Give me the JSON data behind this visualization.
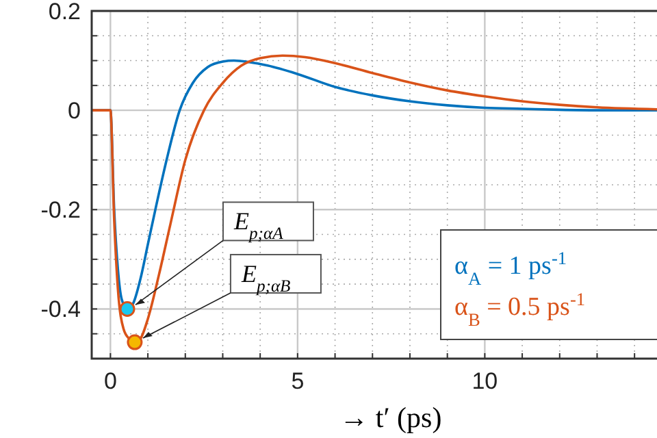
{
  "chart_data": {
    "type": "line",
    "xlabel": "→ t′ (ps)",
    "xlim": [
      -0.5,
      14.6
    ],
    "ylim": [
      -0.5,
      0.2
    ],
    "xticks": [
      0,
      {
        "value": 1,
        "label": null
      },
      {
        "value": 2,
        "label": null
      },
      {
        "value": 3,
        "label": null
      },
      {
        "value": 4,
        "label": null
      },
      5,
      {
        "value": 6,
        "label": null
      },
      {
        "value": 7,
        "label": null
      },
      {
        "value": 8,
        "label": null
      },
      {
        "value": 9,
        "label": null
      },
      10,
      {
        "value": 11,
        "label": null
      },
      {
        "value": 12,
        "label": null
      },
      {
        "value": 13,
        "label": null
      },
      {
        "value": 14,
        "label": null
      }
    ],
    "yticks": [
      {
        "value": -0.45,
        "label": null
      },
      -0.4,
      {
        "value": -0.35,
        "label": null
      },
      {
        "value": -0.3,
        "label": null
      },
      {
        "value": -0.25,
        "label": null
      },
      -0.2,
      {
        "value": -0.15,
        "label": null
      },
      {
        "value": -0.1,
        "label": null
      },
      {
        "value": -0.05,
        "label": null
      },
      0,
      {
        "value": 0.05,
        "label": null
      },
      {
        "value": 0.1,
        "label": null
      },
      {
        "value": 0.15,
        "label": null
      },
      0.2
    ],
    "grid": true,
    "legend": "bottom right",
    "line_style": "solid",
    "series": [
      {
        "name": "α$_{A}$ = 1 ps$^{-1}$",
        "color": "#0072bd",
        "x": [
          -0.5,
          0,
          0.1,
          0.2,
          0.3,
          0.45,
          0.6,
          0.8,
          1.0,
          1.2,
          1.5,
          1.85,
          2.2,
          2.6,
          3.0,
          3.3,
          3.7,
          4.2,
          5,
          6,
          7,
          8,
          9,
          10,
          11,
          12,
          13,
          14.6
        ],
        "values": [
          0,
          0,
          -0.2,
          -0.32,
          -0.38,
          -0.4,
          -0.39,
          -0.34,
          -0.27,
          -0.2,
          -0.1,
          0,
          0.055,
          0.087,
          0.098,
          0.1,
          0.097,
          0.09,
          0.073,
          0.047,
          0.03,
          0.018,
          0.01,
          0.005,
          0.003,
          0.001,
          0,
          0
        ]
      },
      {
        "name": "α$_{B}$ = 0.5 ps$^{-1}$",
        "color": "#d95319",
        "x": [
          -0.5,
          0,
          0.1,
          0.2,
          0.35,
          0.5,
          0.65,
          0.8,
          1.0,
          1.3,
          1.6,
          2.0,
          2.5,
          3.0,
          3.5,
          4.0,
          4.6,
          5.2,
          6,
          7,
          8,
          9,
          10,
          11,
          12,
          13,
          14.6
        ],
        "values": [
          0,
          0,
          -0.22,
          -0.36,
          -0.44,
          -0.46,
          -0.467,
          -0.46,
          -0.42,
          -0.33,
          -0.23,
          -0.1,
          0,
          0.055,
          0.09,
          0.105,
          0.11,
          0.107,
          0.095,
          0.075,
          0.056,
          0.04,
          0.028,
          0.018,
          0.011,
          0.006,
          0.002
        ]
      },
      {
        "type": "scatter",
        "marker": "circle",
        "color": "#19c8f0",
        "x": [
          0.45
        ],
        "values": [
          -0.4
        ]
      },
      {
        "type": "scatter",
        "marker": "circle",
        "color": "#f5b800",
        "x": [
          0.65
        ],
        "values": [
          -0.467
        ]
      }
    ],
    "annotations": [
      {
        "text": "E$_{p;αA}$",
        "x": 0.45,
        "y": -0.4
      },
      {
        "text": "E$_{p;αB}$",
        "x": 0.65,
        "y": -0.467
      }
    ]
  }
}
